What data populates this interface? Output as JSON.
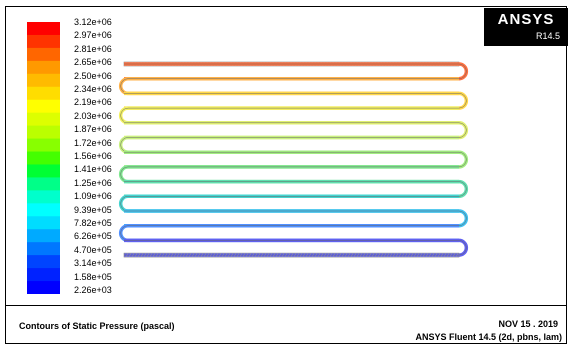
{
  "legend": {
    "values": [
      "3.12e+06",
      "2.97e+06",
      "2.81e+06",
      "2.65e+06",
      "2.50e+06",
      "2.34e+06",
      "2.19e+06",
      "2.03e+06",
      "1.87e+06",
      "1.72e+06",
      "1.56e+06",
      "1.41e+06",
      "1.25e+06",
      "1.09e+06",
      "9.39e+05",
      "7.82e+05",
      "6.26e+05",
      "4.70e+05",
      "3.14e+05",
      "1.58e+05",
      "2.26e+03"
    ],
    "colors": [
      "#ff0000",
      "#ff3300",
      "#ff6600",
      "#ff9900",
      "#ffbb00",
      "#ffdd00",
      "#ffff00",
      "#ddff00",
      "#bbff00",
      "#88ff00",
      "#44ff00",
      "#00ff33",
      "#00ff88",
      "#00ffcc",
      "#00ffff",
      "#00ddff",
      "#00aaff",
      "#0077ff",
      "#0044ff",
      "#0022ff",
      "#0000ff"
    ]
  },
  "logo": {
    "name": "ANSYS",
    "version": "R14.5"
  },
  "footer": {
    "title": "Contours of Static Pressure (pascal)",
    "date": "NOV 15 . 2019",
    "solver": "ANSYS Fluent 14.5 (2d, pbns, lam)"
  },
  "contour": {
    "pass_colors": [
      "#ff7040",
      "#ffb24a",
      "#ffd84a",
      "#f2f060",
      "#e0f070",
      "#c8f080",
      "#a2ee80",
      "#7fe890",
      "#5fdfb0",
      "#45d4d0",
      "#40c0f0",
      "#5090ff",
      "#6060f0"
    ]
  }
}
